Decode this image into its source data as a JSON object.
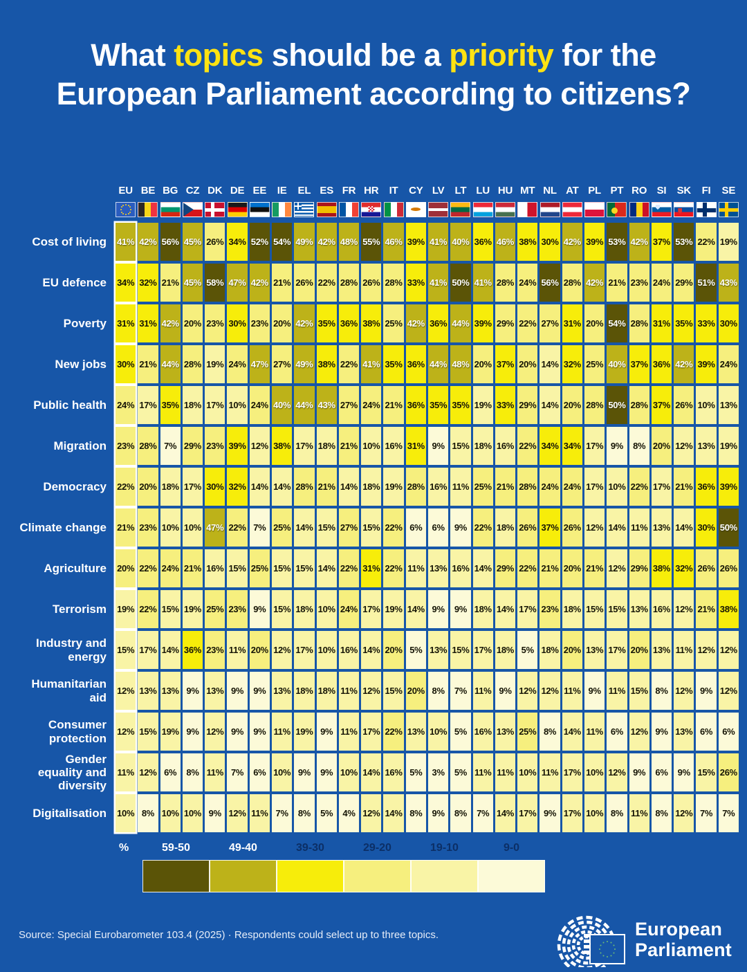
{
  "title": {
    "segments": [
      {
        "text": "What ",
        "highlight": false
      },
      {
        "text": "topics",
        "highlight": true
      },
      {
        "text": " should be a ",
        "highlight": false
      },
      {
        "text": "priority",
        "highlight": true
      },
      {
        "text": " for the European Parliament according to citizens?",
        "highlight": false
      }
    ],
    "text_color": "#ffffff",
    "highlight_color": "#ffe212"
  },
  "chart_data": {
    "type": "heatmap",
    "columns": [
      "EU",
      "BE",
      "BG",
      "CZ",
      "DK",
      "DE",
      "EE",
      "IE",
      "EL",
      "ES",
      "FR",
      "HR",
      "IT",
      "CY",
      "LV",
      "LT",
      "LU",
      "HU",
      "MT",
      "NL",
      "AT",
      "PL",
      "PT",
      "RO",
      "SI",
      "SK",
      "FI",
      "SE"
    ],
    "flag_icons": [
      "flag-eu-icon",
      "flag-be-icon",
      "flag-bg-icon",
      "flag-cz-icon",
      "flag-dk-icon",
      "flag-de-icon",
      "flag-ee-icon",
      "flag-ie-icon",
      "flag-el-icon",
      "flag-es-icon",
      "flag-fr-icon",
      "flag-hr-icon",
      "flag-it-icon",
      "flag-cy-icon",
      "flag-lv-icon",
      "flag-lt-icon",
      "flag-lu-icon",
      "flag-hu-icon",
      "flag-mt-icon",
      "flag-nl-icon",
      "flag-at-icon",
      "flag-pl-icon",
      "flag-pt-icon",
      "flag-ro-icon",
      "flag-si-icon",
      "flag-sk-icon",
      "flag-fi-icon",
      "flag-se-icon"
    ],
    "rows": [
      "Cost of living",
      "EU defence",
      "Poverty",
      "New jobs",
      "Public health",
      "Migration",
      "Democracy",
      "Climate change",
      "Agriculture",
      "Terrorism",
      "Industry and energy",
      "Humanitarian aid",
      "Consumer protection",
      "Gender equality and diversity",
      "Digitalisation"
    ],
    "values": [
      [
        41,
        42,
        56,
        45,
        26,
        34,
        52,
        54,
        49,
        42,
        48,
        55,
        46,
        39,
        41,
        40,
        36,
        46,
        38,
        30,
        42,
        39,
        53,
        42,
        37,
        53,
        22,
        19
      ],
      [
        34,
        32,
        21,
        45,
        58,
        47,
        42,
        21,
        26,
        22,
        28,
        26,
        28,
        33,
        41,
        50,
        41,
        28,
        24,
        56,
        28,
        42,
        21,
        23,
        24,
        29,
        51,
        43
      ],
      [
        31,
        31,
        42,
        20,
        23,
        30,
        23,
        20,
        42,
        35,
        36,
        38,
        25,
        42,
        36,
        44,
        39,
        29,
        22,
        27,
        31,
        20,
        54,
        28,
        31,
        35,
        33,
        30
      ],
      [
        30,
        21,
        44,
        28,
        19,
        24,
        47,
        27,
        49,
        38,
        22,
        41,
        35,
        36,
        44,
        48,
        20,
        37,
        20,
        14,
        32,
        25,
        40,
        37,
        36,
        42,
        39,
        24
      ],
      [
        24,
        17,
        35,
        18,
        17,
        10,
        24,
        40,
        44,
        43,
        27,
        24,
        21,
        36,
        35,
        35,
        19,
        33,
        29,
        14,
        20,
        28,
        50,
        28,
        37,
        26,
        10,
        13
      ],
      [
        23,
        28,
        7,
        29,
        23,
        39,
        12,
        38,
        17,
        18,
        21,
        10,
        16,
        31,
        9,
        15,
        18,
        16,
        22,
        34,
        34,
        17,
        9,
        8,
        20,
        12,
        13,
        19
      ],
      [
        22,
        20,
        18,
        17,
        30,
        32,
        14,
        14,
        28,
        21,
        14,
        18,
        19,
        28,
        16,
        11,
        25,
        21,
        28,
        24,
        24,
        17,
        10,
        22,
        17,
        21,
        36,
        39
      ],
      [
        21,
        23,
        10,
        10,
        47,
        22,
        7,
        25,
        14,
        15,
        27,
        15,
        22,
        6,
        6,
        9,
        22,
        18,
        26,
        37,
        26,
        12,
        14,
        11,
        13,
        14,
        30,
        50
      ],
      [
        20,
        22,
        24,
        21,
        16,
        15,
        25,
        15,
        15,
        14,
        22,
        31,
        22,
        11,
        13,
        16,
        14,
        29,
        22,
        21,
        20,
        21,
        12,
        29,
        38,
        32,
        26,
        26
      ],
      [
        19,
        22,
        15,
        19,
        25,
        23,
        9,
        15,
        18,
        10,
        24,
        17,
        19,
        14,
        9,
        9,
        18,
        14,
        17,
        23,
        18,
        15,
        15,
        13,
        16,
        12,
        21,
        38
      ],
      [
        15,
        17,
        14,
        36,
        23,
        11,
        20,
        12,
        17,
        10,
        16,
        14,
        20,
        5,
        13,
        15,
        17,
        18,
        5,
        18,
        20,
        13,
        17,
        20,
        13,
        11,
        12,
        12
      ],
      [
        12,
        13,
        13,
        9,
        13,
        9,
        9,
        13,
        18,
        18,
        11,
        12,
        15,
        20,
        8,
        7,
        11,
        9,
        12,
        12,
        11,
        9,
        11,
        15,
        8,
        12,
        9,
        12
      ],
      [
        12,
        15,
        19,
        9,
        12,
        9,
        9,
        11,
        19,
        9,
        11,
        17,
        22,
        13,
        10,
        5,
        16,
        13,
        25,
        8,
        14,
        11,
        6,
        12,
        9,
        13,
        6,
        6
      ],
      [
        11,
        12,
        6,
        8,
        11,
        7,
        6,
        10,
        9,
        9,
        10,
        14,
        16,
        5,
        3,
        5,
        11,
        11,
        10,
        11,
        17,
        10,
        12,
        9,
        6,
        9,
        15,
        26
      ],
      [
        10,
        8,
        10,
        10,
        9,
        12,
        11,
        7,
        8,
        5,
        4,
        12,
        14,
        8,
        9,
        8,
        7,
        14,
        17,
        9,
        17,
        10,
        8,
        11,
        8,
        12,
        7,
        7
      ]
    ],
    "value_suffix": "%",
    "highlight_column": "EU",
    "white_text_threshold": 40,
    "legend_unit_label": "%",
    "bins": [
      {
        "label": "59-50",
        "min": 50,
        "max": 59,
        "color": "#5b5407",
        "label_color": "#ffffff"
      },
      {
        "label": "49-40",
        "min": 40,
        "max": 49,
        "color": "#bdb219",
        "label_color": "#ffffff"
      },
      {
        "label": "39-30",
        "min": 30,
        "max": 39,
        "color": "#f7ed0a",
        "label_color": "#0c2f66"
      },
      {
        "label": "29-20",
        "min": 20,
        "max": 29,
        "color": "#f6ef7e",
        "label_color": "#0c2f66"
      },
      {
        "label": "19-10",
        "min": 10,
        "max": 19,
        "color": "#f9f4a6",
        "label_color": "#0c2f66"
      },
      {
        "label": "9-0",
        "min": 0,
        "max": 9,
        "color": "#fcfad8",
        "label_color": "#0c2f66"
      }
    ]
  },
  "footer": {
    "source": "Source: Special Eurobarometer 103.4 (2025) · Respondents could select up to three topics.",
    "logo_line1": "European",
    "logo_line2": "Parliament"
  },
  "colors": {
    "background": "#1756a8",
    "cell_text_dark": "#151405",
    "cell_text_light": "#ffffff"
  }
}
